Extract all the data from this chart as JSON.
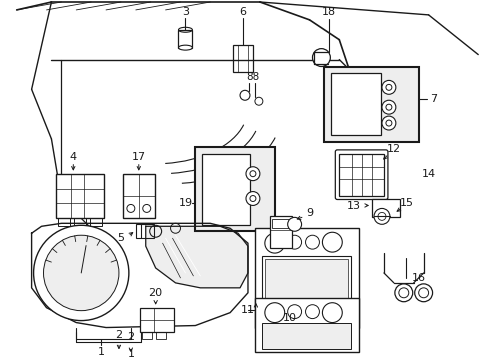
{
  "bg_color": "#ffffff",
  "line_color": "#1a1a1a",
  "gray_fill": "#d8d8d8",
  "light_gray": "#eeeeee",
  "components": {
    "label_fs": 7.5,
    "arrow_lw": 0.7
  }
}
